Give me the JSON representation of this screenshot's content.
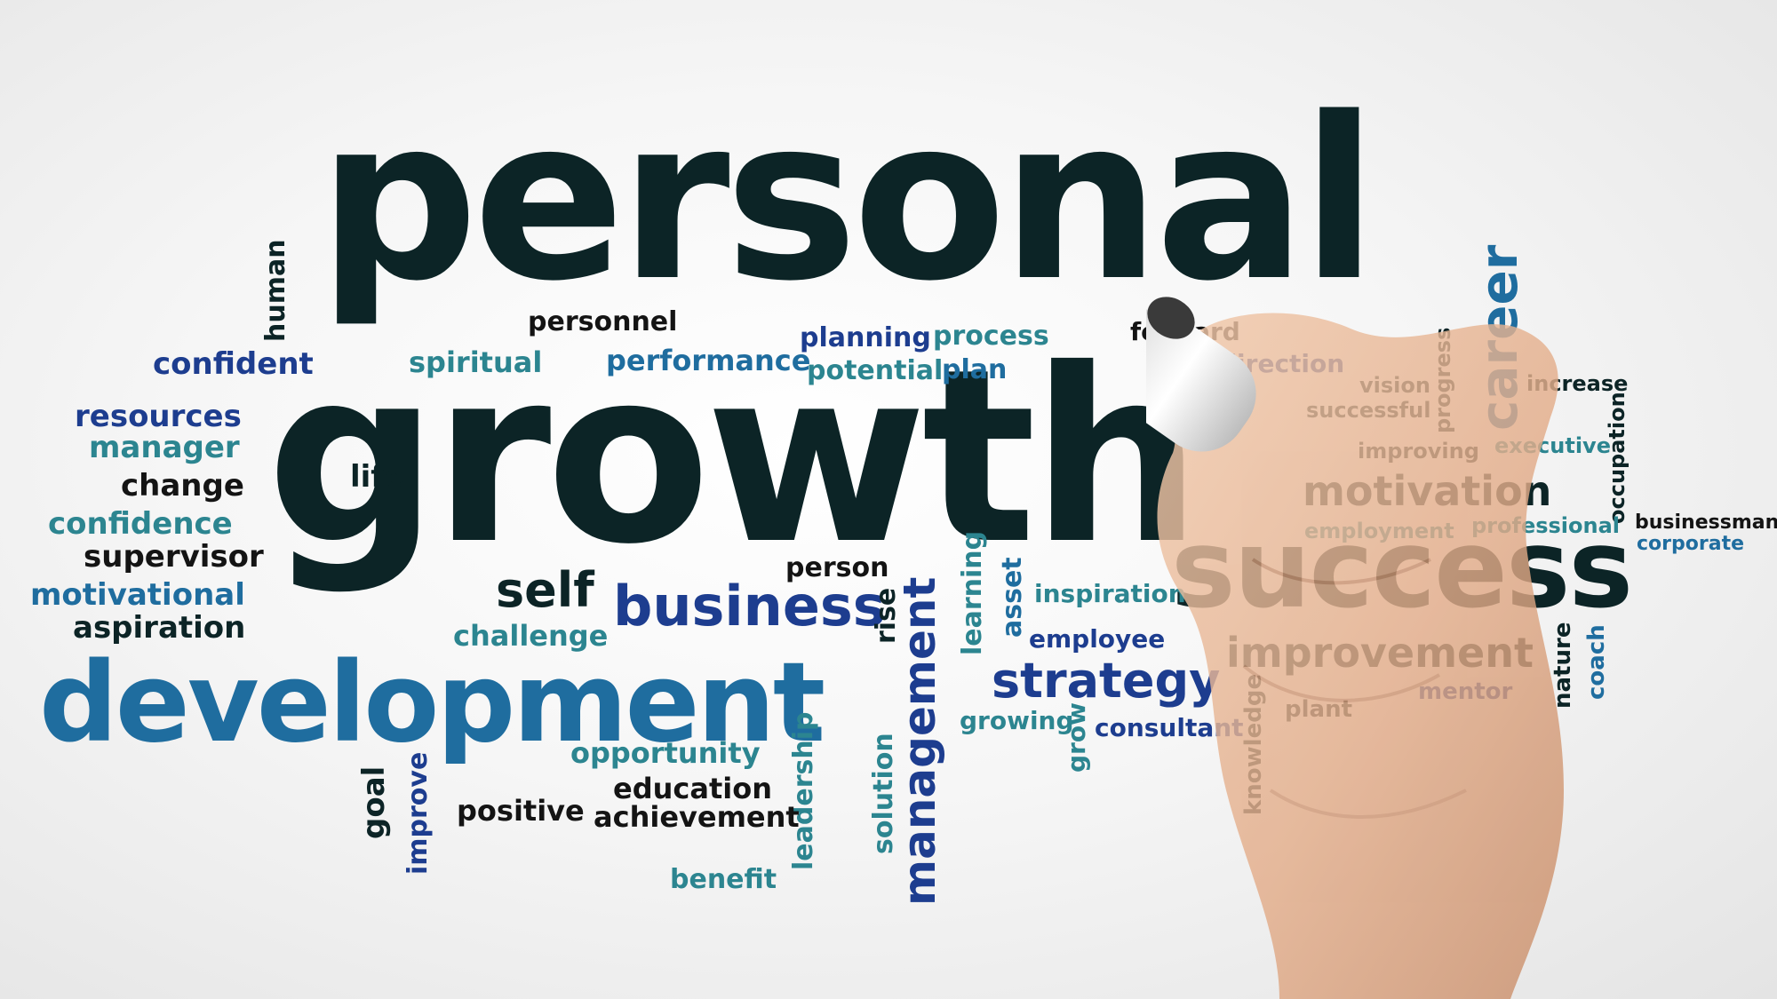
{
  "words": {
    "personal": "personal",
    "growth": "growth",
    "success": "success",
    "development": "development",
    "career": "career",
    "business": "business",
    "self": "self",
    "strategy": "strategy",
    "improvement": "improvement",
    "motivation": "motivation",
    "management": "management",
    "human": "human",
    "confident": "confident",
    "resources": "resources",
    "manager": "manager",
    "change": "change",
    "confidence": "confidence",
    "supervisor": "supervisor",
    "motivational": "motivational",
    "aspiration": "aspiration",
    "spiritual": "spiritual",
    "personnel": "personnel",
    "performance": "performance",
    "planning": "planning",
    "process": "process",
    "potential": "potential",
    "plan": "plan",
    "forward": "forward",
    "direction": "direction",
    "vision": "vision",
    "progress": "progress",
    "successful": "successful",
    "increase": "increase",
    "improving": "improving",
    "executive": "executive",
    "occupation": "occupation",
    "employment": "employment",
    "professional": "professional",
    "businessman": "businessman",
    "corporate": "corporate",
    "life": "life",
    "person": "person",
    "challenge": "challenge",
    "rise": "rise",
    "learning": "learning",
    "asset": "asset",
    "inspiration": "inspiration",
    "employee": "employee",
    "growing": "growing",
    "grow": "grow",
    "consultant": "consultant",
    "knowledge": "knowledge",
    "plant": "plant",
    "mentor": "mentor",
    "nature": "nature",
    "coach": "coach",
    "opportunity": "opportunity",
    "education": "education",
    "achievement": "achievement",
    "positive": "positive",
    "goal": "goal",
    "improve": "improve",
    "leadership": "leadership",
    "solution": "solution",
    "benefit": "benefit"
  },
  "colors": {
    "dark": "#0c2426",
    "navy": "#1d3d8f",
    "blue": "#1f6d9f",
    "teal": "#2c8590",
    "background": "#f4f4f4",
    "skin": "#e7b796"
  },
  "objects": [
    "hand",
    "marker"
  ]
}
